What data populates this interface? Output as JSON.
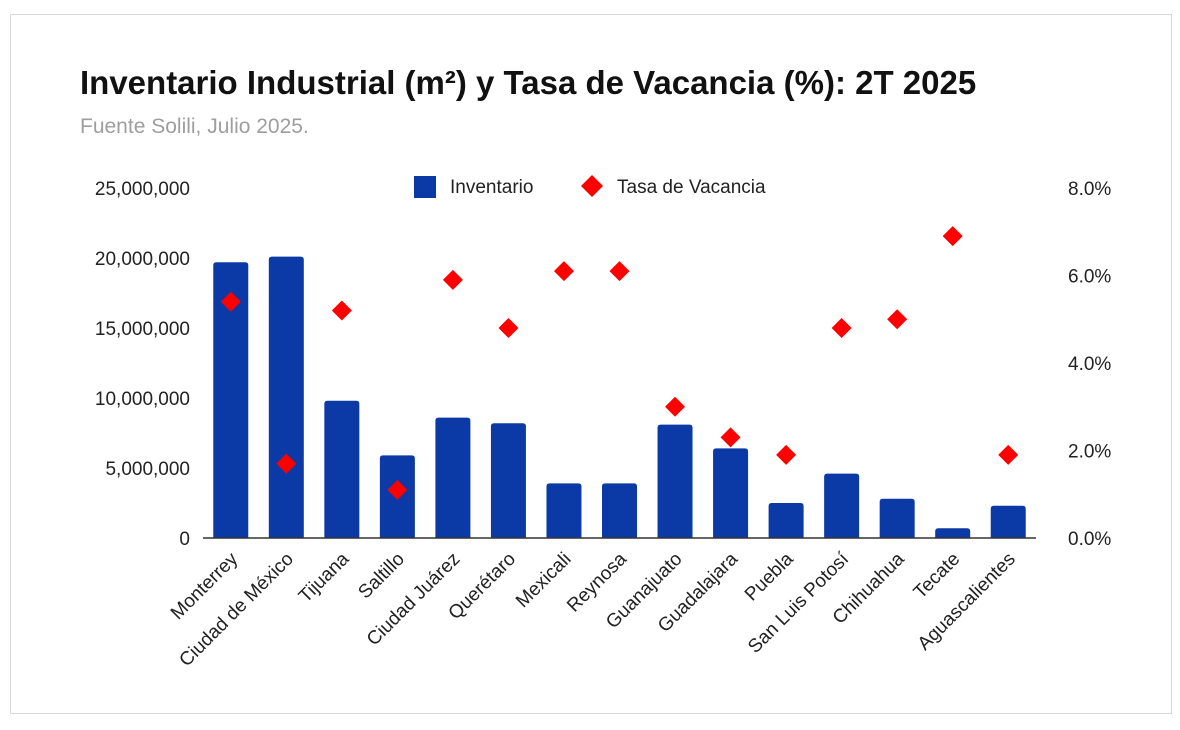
{
  "chart_data": {
    "type": "bar",
    "title": "Inventario Industrial (m²) y Tasa de Vacancia (%): 2T 2025",
    "subtitle": "Fuente Solili, Julio 2025.",
    "categories": [
      "Monterrey",
      "Ciudad de México",
      "Tijuana",
      "Saltillo",
      "Ciudad Juárez",
      "Querétaro",
      "Mexicali",
      "Reynosa",
      "Guanajuato",
      "Guadalajara",
      "Puebla",
      "San Luis Potosí",
      "Chihuahua",
      "Tecate",
      "Aguascalientes"
    ],
    "series": [
      {
        "name": "Inventario",
        "kind": "bar",
        "axis": "left",
        "color": "#0b3aa6",
        "values": [
          19700000,
          20100000,
          9800000,
          5900000,
          8600000,
          8200000,
          3900000,
          3900000,
          8100000,
          6400000,
          2500000,
          4600000,
          2800000,
          700000,
          2300000
        ]
      },
      {
        "name": "Tasa de Vacancia",
        "kind": "scatter-diamond",
        "axis": "right",
        "color": "#ff0000",
        "values": [
          5.4,
          1.7,
          5.2,
          1.1,
          5.9,
          4.8,
          6.1,
          6.1,
          3.0,
          2.3,
          1.9,
          4.8,
          5.0,
          6.9,
          1.9
        ]
      }
    ],
    "y_left": {
      "min": 0,
      "max": 25000000,
      "ticks": [
        0,
        5000000,
        10000000,
        15000000,
        20000000,
        25000000
      ],
      "tick_labels": [
        "0",
        "5,000,000",
        "10,000,000",
        "15,000,000",
        "20,000,000",
        "25,000,000"
      ]
    },
    "y_right": {
      "min": 0,
      "max": 8,
      "ticks": [
        0,
        2,
        4,
        6,
        8
      ],
      "tick_labels": [
        "0.0%",
        "2.0%",
        "4.0%",
        "6.0%",
        "8.0%"
      ]
    },
    "xlabel": "",
    "ylabel": "",
    "legend": {
      "position": "top-center",
      "items": [
        "Inventario",
        "Tasa de Vacancia"
      ]
    },
    "grid": false
  }
}
